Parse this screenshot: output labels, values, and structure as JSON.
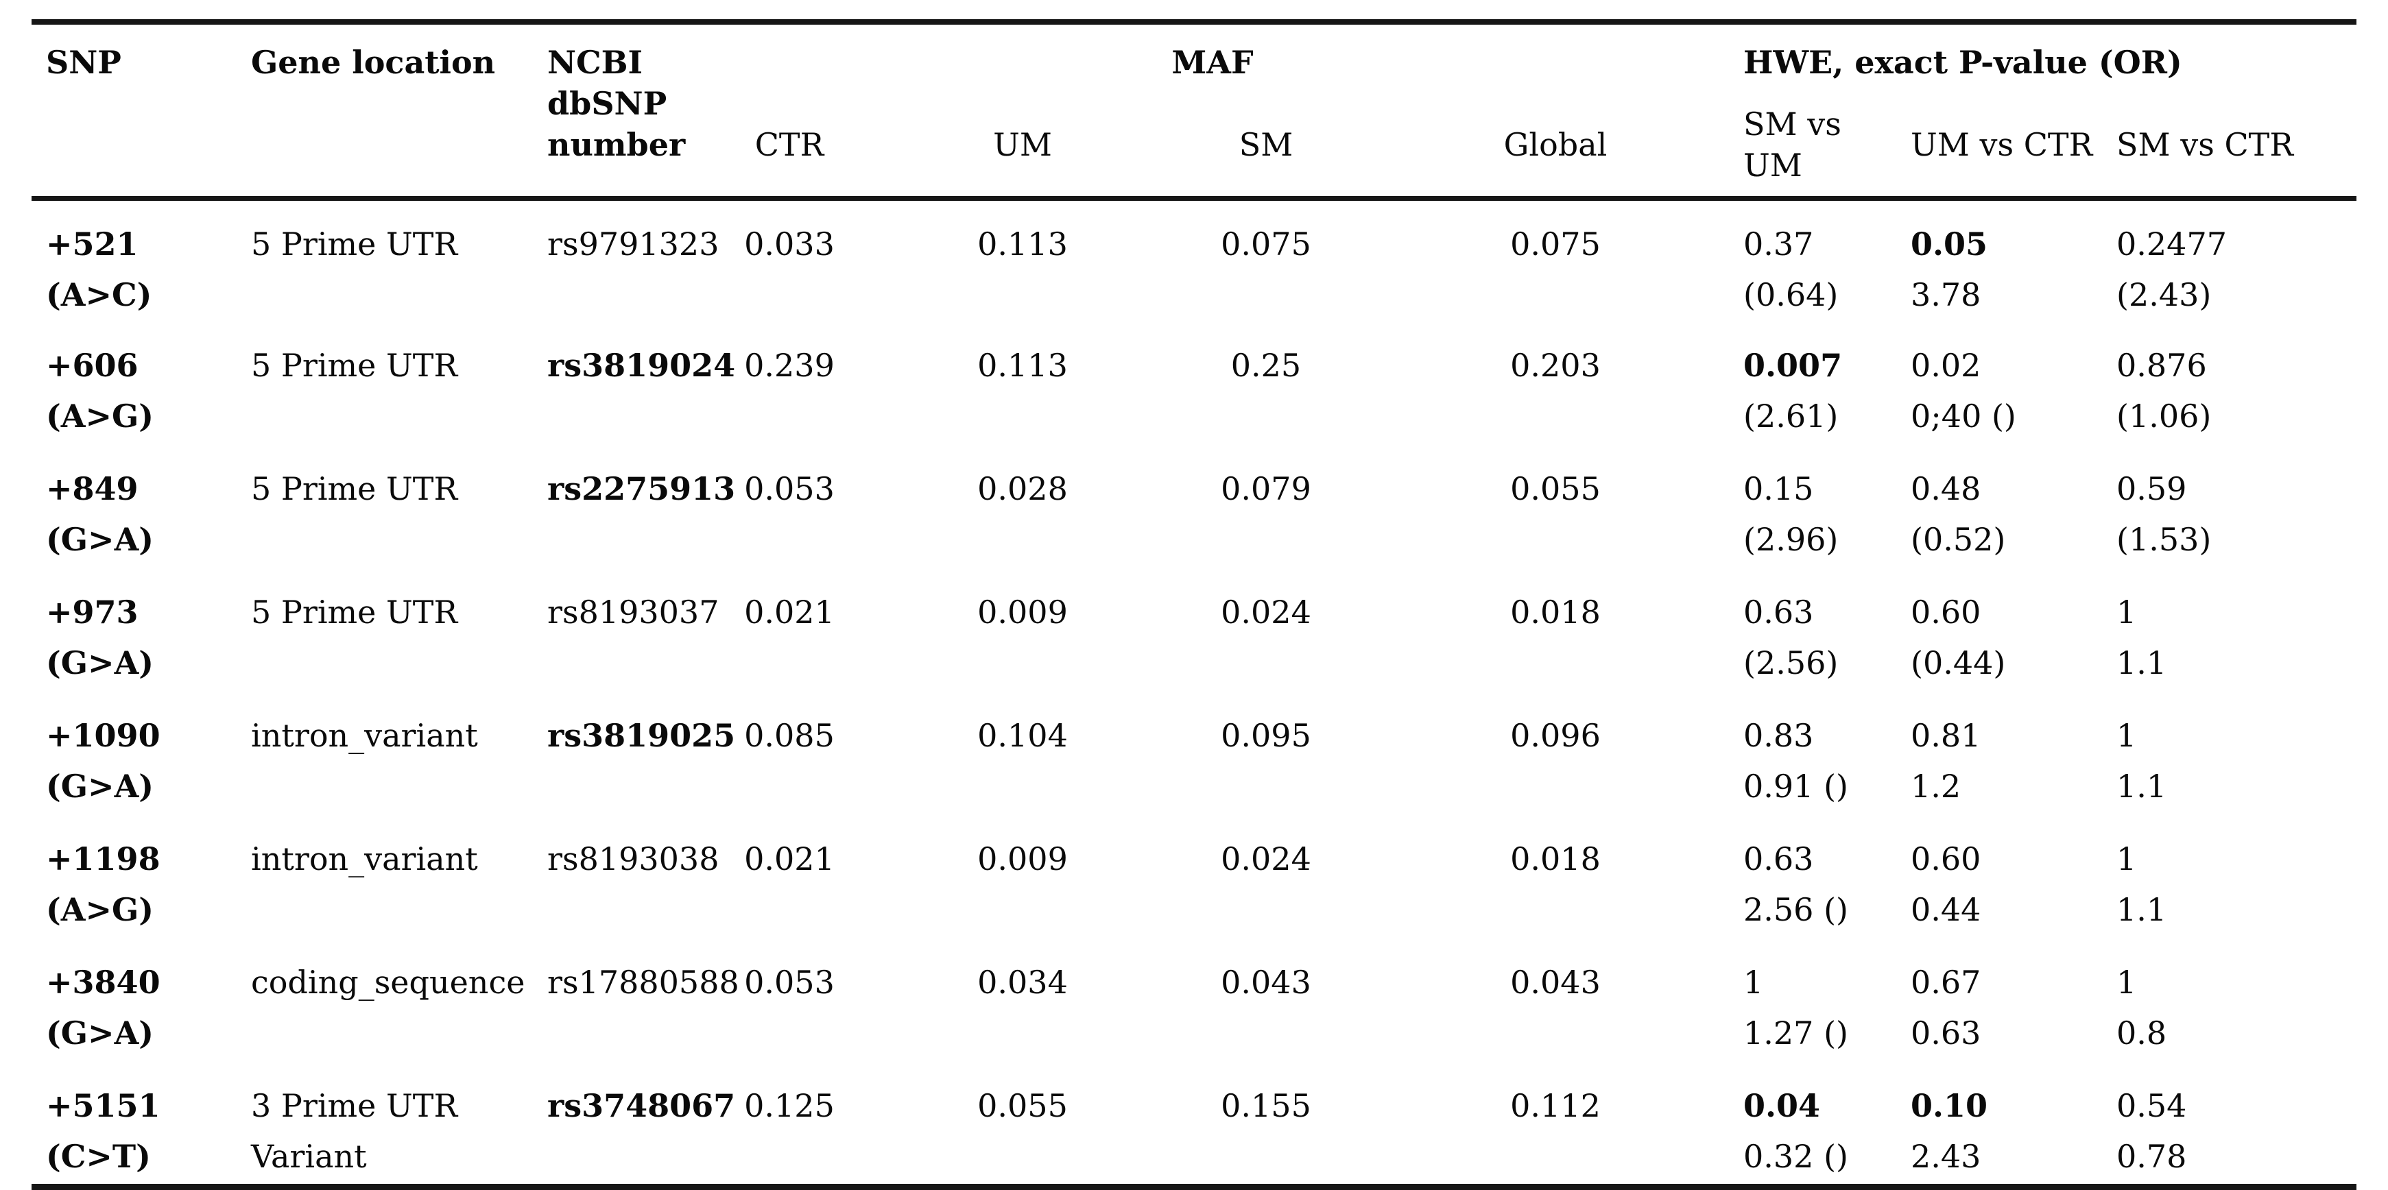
{
  "table": {
    "header": {
      "snp": "SNP",
      "gene_location": "Gene location",
      "dbsnp": "NCBI\ndbSNP\nnumber",
      "maf_group": "MAF",
      "hwe_group": "HWE, exact P-value (OR)",
      "maf_subs": [
        "CTR",
        "UM",
        "SM",
        "Global"
      ],
      "hwe_subs": [
        "SM vs UM",
        "UM vs CTR",
        "SM vs CTR"
      ]
    },
    "rows": [
      {
        "snp": "+521 (A>C)",
        "gene": "5 Prime UTR",
        "rs": "rs9791323",
        "rs_bold": false,
        "ctr": "0.033",
        "um": "0.113",
        "sm": "0.075",
        "global": "0.075",
        "hwe": [
          {
            "p": "0.37",
            "p_bold": false,
            "or": "(0.64)"
          },
          {
            "p": "0.05",
            "p_bold": true,
            "or": "3.78"
          },
          {
            "p": "0.2477",
            "p_bold": false,
            "or": "(2.43)"
          }
        ]
      },
      {
        "snp": "+606 (A>G)",
        "gene": "5 Prime UTR",
        "rs": "rs3819024",
        "rs_bold": true,
        "ctr": "0.239",
        "um": "0.113",
        "sm": "0.25",
        "global": "0.203",
        "hwe": [
          {
            "p": "0.007",
            "p_bold": true,
            "or": "(2.61)"
          },
          {
            "p": "0.02",
            "p_bold": false,
            "or": "0;40 ()"
          },
          {
            "p": "0.876",
            "p_bold": false,
            "or": "(1.06)"
          }
        ]
      },
      {
        "snp": "+849 (G>A)",
        "gene": "5 Prime UTR",
        "rs": "rs2275913",
        "rs_bold": true,
        "ctr": "0.053",
        "um": "0.028",
        "sm": "0.079",
        "global": "0.055",
        "hwe": [
          {
            "p": "0.15",
            "p_bold": false,
            "or": "(2.96)"
          },
          {
            "p": "0.48",
            "p_bold": false,
            "or": "(0.52)"
          },
          {
            "p": "0.59",
            "p_bold": false,
            "or": "(1.53)"
          }
        ]
      },
      {
        "snp": "+973 (G>A)",
        "gene": "5 Prime UTR",
        "rs": "rs8193037",
        "rs_bold": false,
        "ctr": "0.021",
        "um": "0.009",
        "sm": "0.024",
        "global": "0.018",
        "hwe": [
          {
            "p": "0.63",
            "p_bold": false,
            "or": "(2.56)"
          },
          {
            "p": "0.60",
            "p_bold": false,
            "or": "(0.44)"
          },
          {
            "p": "1",
            "p_bold": false,
            "or": "1.1"
          }
        ]
      },
      {
        "snp": "+1090 (G>A)",
        "gene": "intron_variant",
        "rs": "rs3819025",
        "rs_bold": true,
        "ctr": "0.085",
        "um": "0.104",
        "sm": "0.095",
        "global": "0.096",
        "hwe": [
          {
            "p": "0.83",
            "p_bold": false,
            "or": "0.91 ()"
          },
          {
            "p": "0.81",
            "p_bold": false,
            "or": "1.2"
          },
          {
            "p": "1",
            "p_bold": false,
            "or": "1.1"
          }
        ]
      },
      {
        "snp": "+1198 (A>G)",
        "gene": "intron_variant",
        "rs": "rs8193038",
        "rs_bold": false,
        "ctr": "0.021",
        "um": "0.009",
        "sm": "0.024",
        "global": "0.018",
        "hwe": [
          {
            "p": "0.63",
            "p_bold": false,
            "or": "2.56 ()"
          },
          {
            "p": "0.60",
            "p_bold": false,
            "or": "0.44"
          },
          {
            "p": "1",
            "p_bold": false,
            "or": "1.1"
          }
        ]
      },
      {
        "snp": "+3840 (G>A)",
        "gene": "coding_sequence",
        "rs": "rs17880588",
        "rs_bold": false,
        "ctr": "0.053",
        "um": "0.034",
        "sm": "0.043",
        "global": "0.043",
        "hwe": [
          {
            "p": "1",
            "p_bold": false,
            "or": "1.27 ()"
          },
          {
            "p": "0.67",
            "p_bold": false,
            "or": "0.63"
          },
          {
            "p": "1",
            "p_bold": false,
            "or": "0.8"
          }
        ]
      },
      {
        "snp": "+5151 (C>T)",
        "gene": "3 Prime UTR\nVariant",
        "rs": "rs3748067",
        "rs_bold": true,
        "ctr": "0.125",
        "um": "0.055",
        "sm": "0.155",
        "global": "0.112",
        "hwe": [
          {
            "p": "0.04",
            "p_bold": true,
            "or": "0.32 ()"
          },
          {
            "p": "0.10",
            "p_bold": true,
            "or": "2.43"
          },
          {
            "p": "0.54",
            "p_bold": false,
            "or": "0.78"
          }
        ]
      }
    ]
  }
}
